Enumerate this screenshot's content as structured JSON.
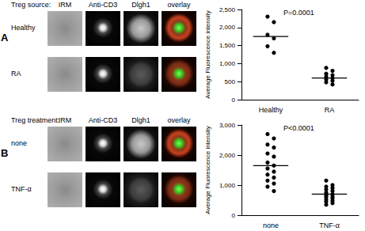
{
  "figure": {
    "panels": [
      {
        "letter": "A",
        "row_header": "Treg source:",
        "columns": [
          "IRM",
          "Anti-CD3",
          "Dlgh1",
          "overlay"
        ],
        "rows": [
          "Healthy",
          "RA"
        ]
      },
      {
        "letter": "B",
        "row_header": "Treg treatment:",
        "columns": [
          "IRM",
          "Anti-CD3",
          "Dlgh1",
          "overlay"
        ],
        "rows": [
          "none",
          "TNF-α"
        ]
      }
    ]
  },
  "chart_data": [
    {
      "type": "scatter",
      "categories": [
        "Healthy",
        "RA"
      ],
      "values": [
        [
          2300,
          2150,
          1800,
          1700,
          1480,
          1300
        ],
        [
          880,
          800,
          720,
          680,
          640,
          600,
          560,
          520,
          480,
          420
        ]
      ],
      "means": [
        1750,
        600
      ],
      "annotation": "P=0.0001",
      "y_label": "Average Fluorescence intensity",
      "ylim": [
        0,
        2500
      ],
      "yticks": [
        0,
        500,
        1000,
        1500,
        2000,
        2500
      ],
      "color": "#000000",
      "marker": "circle",
      "grid": false
    },
    {
      "type": "scatter",
      "categories": [
        "none",
        "TNF-α"
      ],
      "values": [
        [
          2700,
          2550,
          2350,
          2250,
          2050,
          1950,
          1750,
          1650,
          1550,
          1450,
          1350,
          1250,
          1150,
          1050,
          950,
          800
        ],
        [
          1150,
          1000,
          950,
          900,
          850,
          800,
          750,
          700,
          650,
          620,
          600,
          560,
          520,
          480,
          450,
          400,
          350
        ]
      ],
      "means": [
        1650,
        700
      ],
      "annotation": "P<0.0001",
      "y_label": "Average Fluorescence intensity",
      "ylim": [
        0,
        3000
      ],
      "yticks": [
        0,
        1000,
        2000,
        3000
      ],
      "color": "#000000",
      "marker": "circle",
      "grid": false
    }
  ]
}
